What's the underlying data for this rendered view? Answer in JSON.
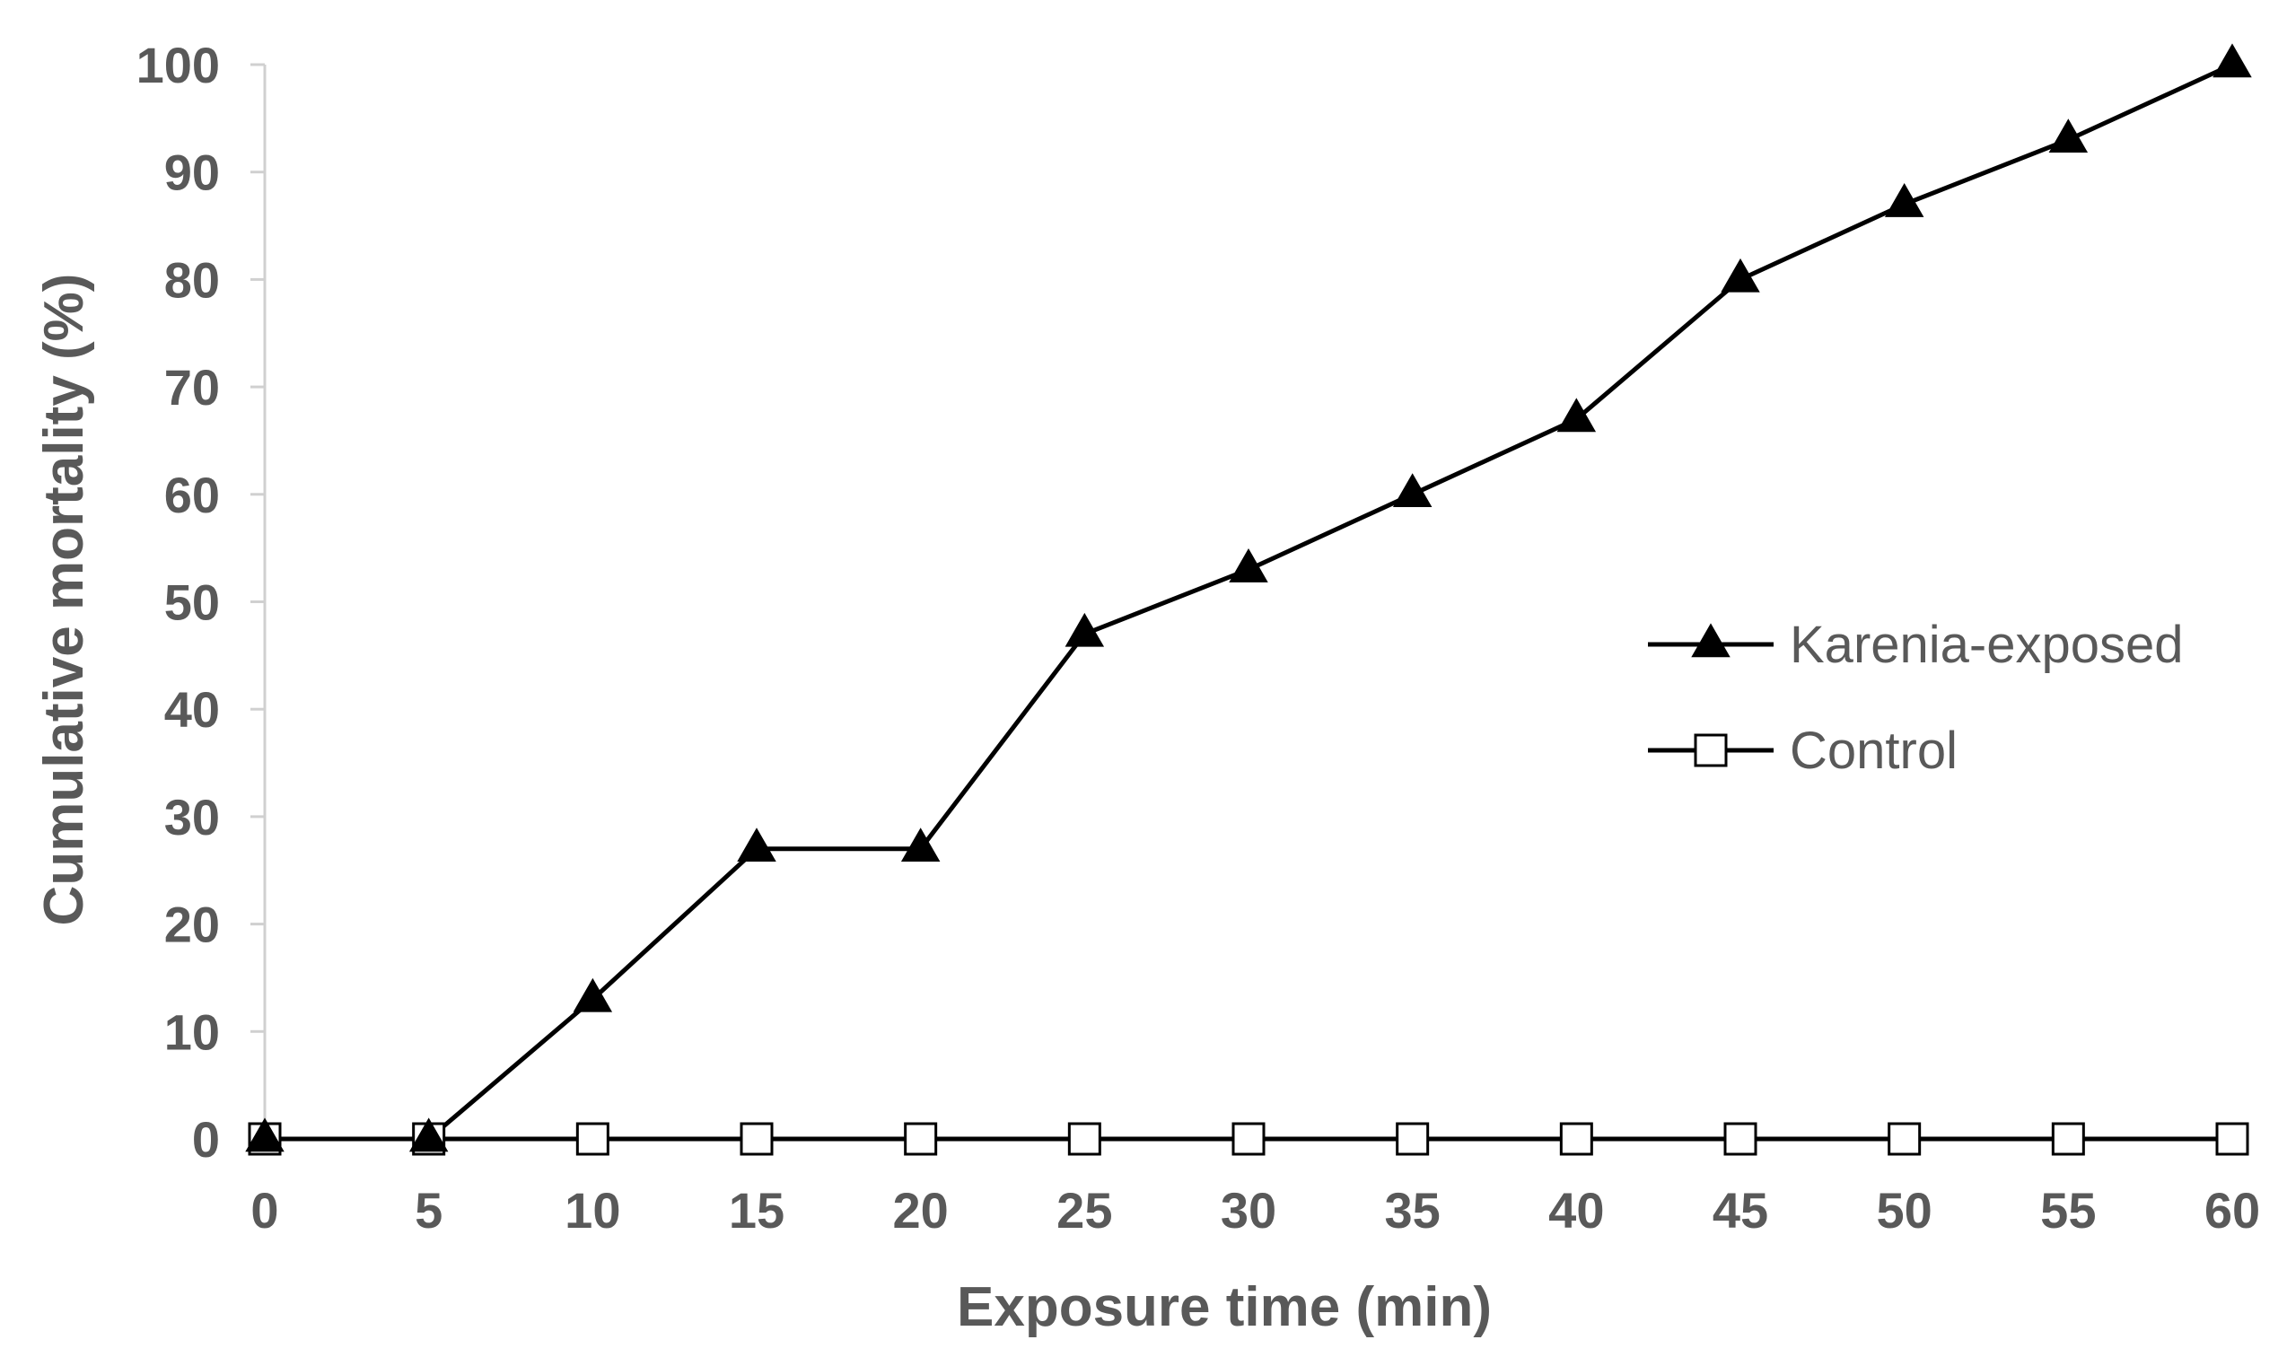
{
  "chart_data": {
    "type": "line",
    "title": "",
    "xlabel": "Exposure time (min)",
    "ylabel": "Cumulative mortality (%)",
    "x": [
      0,
      5,
      10,
      15,
      20,
      25,
      30,
      35,
      40,
      45,
      50,
      55,
      60
    ],
    "xlim": [
      0,
      60
    ],
    "ylim": [
      0,
      100
    ],
    "x_ticks": [
      0,
      5,
      10,
      15,
      20,
      25,
      30,
      35,
      40,
      45,
      50,
      55,
      60
    ],
    "y_ticks": [
      0,
      10,
      20,
      30,
      40,
      50,
      60,
      70,
      80,
      90,
      100
    ],
    "grid": false,
    "legend_position": "right",
    "series": [
      {
        "name": "Karenia-exposed",
        "marker": "filled-triangle",
        "color": "#000000",
        "values": [
          0,
          0,
          13,
          27,
          27,
          47,
          53,
          60,
          67,
          80,
          87,
          93,
          100
        ]
      },
      {
        "name": "Control",
        "marker": "open-square",
        "color": "#000000",
        "values": [
          0,
          0,
          0,
          0,
          0,
          0,
          0,
          0,
          0,
          0,
          0,
          0,
          0
        ]
      }
    ]
  }
}
